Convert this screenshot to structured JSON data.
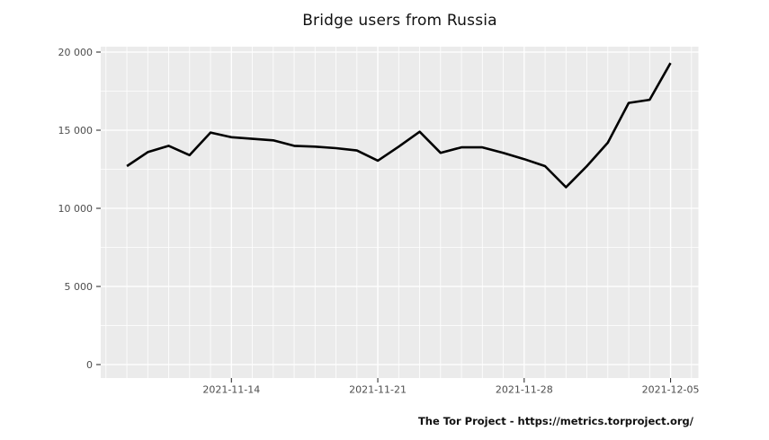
{
  "chart": {
    "title": "Bridge users from Russia"
  },
  "footer": {
    "attribution": "The Tor Project - https://metrics.torproject.org/"
  },
  "chart_data": {
    "type": "line",
    "title": "Bridge users from Russia",
    "x": [
      "2021-11-09",
      "2021-11-10",
      "2021-11-11",
      "2021-11-12",
      "2021-11-13",
      "2021-11-14",
      "2021-11-15",
      "2021-11-16",
      "2021-11-17",
      "2021-11-18",
      "2021-11-19",
      "2021-11-20",
      "2021-11-21",
      "2021-11-22",
      "2021-11-23",
      "2021-11-24",
      "2021-11-25",
      "2021-11-26",
      "2021-11-27",
      "2021-11-28",
      "2021-11-29",
      "2021-11-30",
      "2021-12-01",
      "2021-12-02",
      "2021-12-03",
      "2021-12-04",
      "2021-12-05"
    ],
    "values": [
      12700,
      13600,
      14000,
      13400,
      14850,
      14550,
      14450,
      14350,
      14000,
      13950,
      13850,
      13700,
      13050,
      13950,
      14900,
      13550,
      13900,
      13900,
      13550,
      13150,
      12700,
      11350,
      12700,
      14200,
      16750,
      16950,
      19300
    ],
    "xlabel": "",
    "ylabel": "",
    "ylim": [
      0,
      20000
    ],
    "grid": true,
    "legend": false,
    "x_axis": {
      "start": "2021-11-08",
      "end": "2021-12-06",
      "tick_dates": [
        "2021-11-14",
        "2021-11-21",
        "2021-11-28",
        "2021-12-05"
      ],
      "tick_labels": [
        "2021-11-14",
        "2021-11-21",
        "2021-11-28",
        "2021-12-05"
      ],
      "minor_grid": "daily"
    },
    "y_axis": {
      "tick_values": [
        0,
        5000,
        10000,
        15000,
        20000
      ],
      "tick_labels": [
        "0",
        "5 000",
        "10 000",
        "15 000",
        "20 000"
      ],
      "minor_tick_values": [
        2500,
        7500,
        12500,
        17500
      ]
    },
    "colors": {
      "line": "#000000",
      "panel_background": "#ebebeb",
      "grid": "#ffffff",
      "axis_text": "#4d4d4d",
      "tick_mark": "#333333",
      "title_text": "#111111"
    }
  }
}
